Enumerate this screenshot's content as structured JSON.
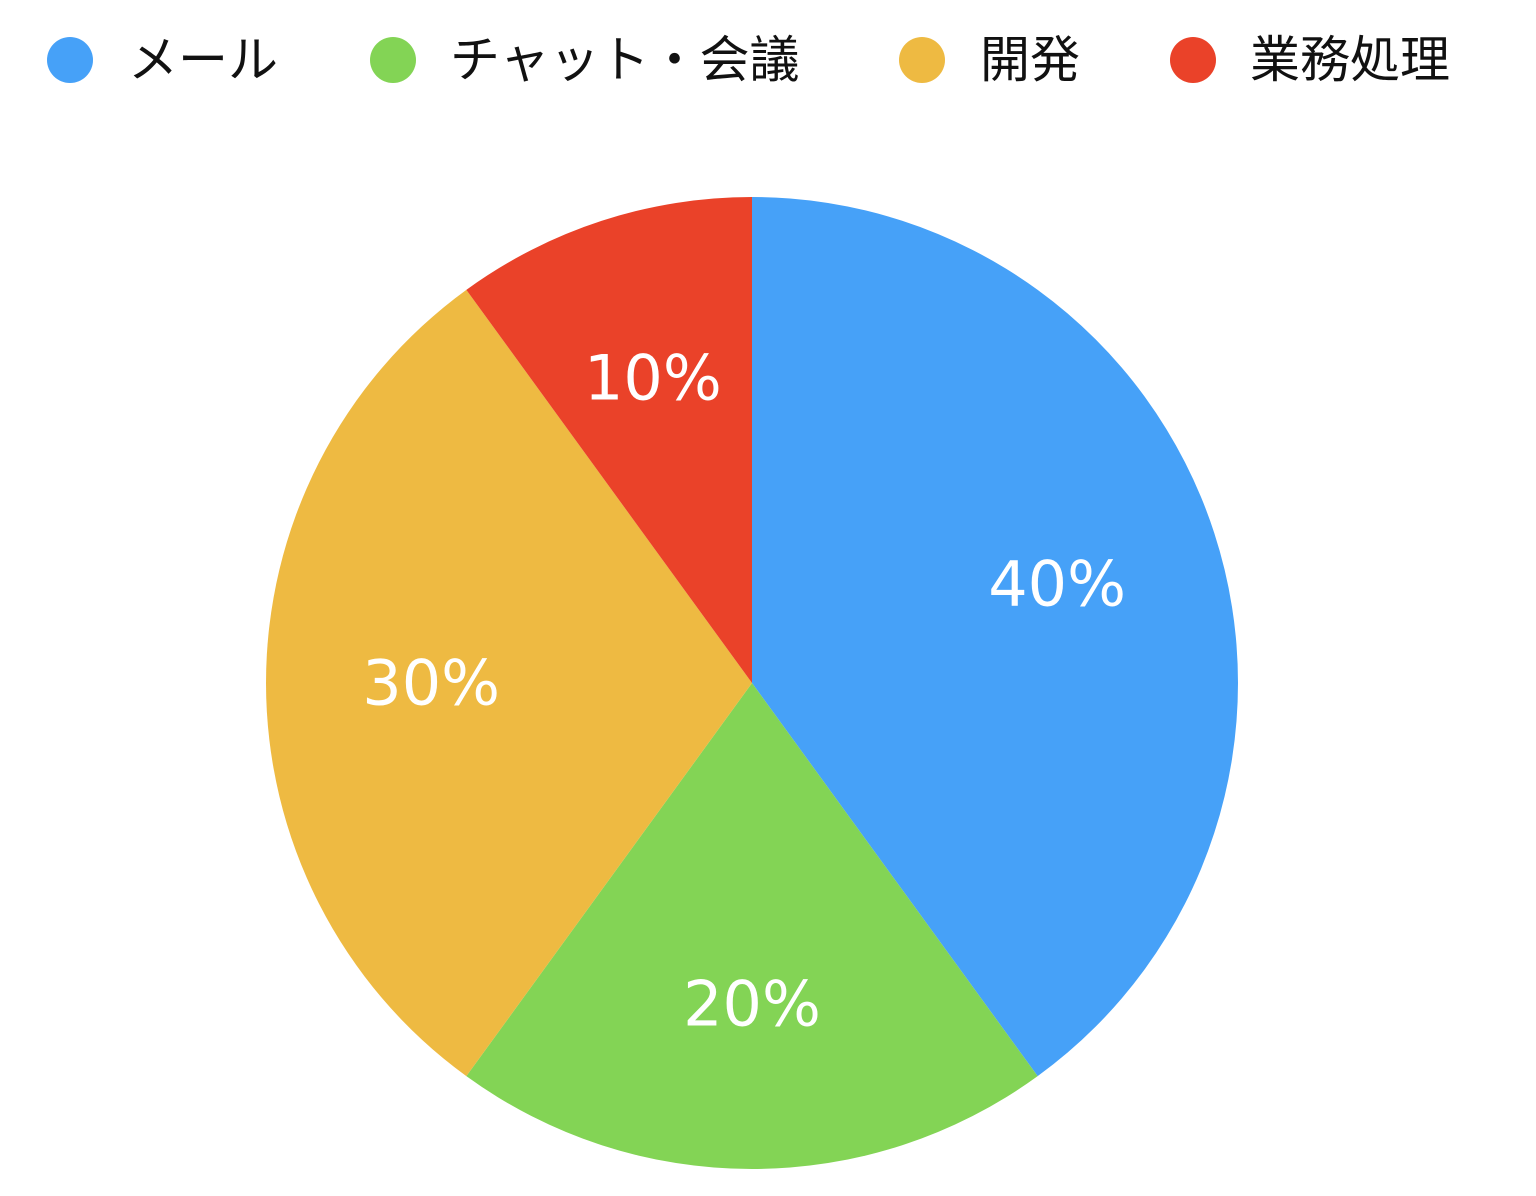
{
  "chart_data": {
    "type": "pie",
    "title": "",
    "legend_position": "top",
    "start": "12 o'clock, clockwise",
    "slices": [
      {
        "name": "メール",
        "value": 40,
        "label": "40%",
        "color": "#46A1F8"
      },
      {
        "name": "チャット・会議",
        "value": 20,
        "label": "20%",
        "color": "#83D455"
      },
      {
        "name": "開発",
        "value": 30,
        "label": "30%",
        "color": "#EEBA42"
      },
      {
        "name": "業務処理",
        "value": 10,
        "label": "10%",
        "color": "#EA4229"
      }
    ]
  }
}
